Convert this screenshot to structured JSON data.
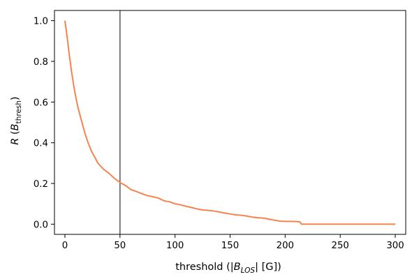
{
  "chart_data": {
    "type": "line",
    "title": "",
    "xlabel": {
      "prefix": "threshold (|",
      "var": "B",
      "sub": "LOS",
      "suffix": "| [G])"
    },
    "ylabel": {
      "var": "R",
      "open": " (",
      "var2": "B",
      "sub": "thresh",
      "close": ")"
    },
    "xlim": [
      -9.5,
      309.5
    ],
    "ylim": [
      -0.05,
      1.05
    ],
    "xticks": [
      0,
      50,
      100,
      150,
      200,
      250,
      300
    ],
    "xtick_labels": [
      "0",
      "50",
      "100",
      "150",
      "200",
      "250",
      "300"
    ],
    "yticks": [
      0.0,
      0.2,
      0.4,
      0.6,
      0.8,
      1.0
    ],
    "ytick_labels": [
      "0.0",
      "0.2",
      "0.4",
      "0.6",
      "0.8",
      "1.0"
    ],
    "grid": false,
    "vline": {
      "x": 50,
      "color": "#555555"
    },
    "series": [
      {
        "color": "#f4834f",
        "x": [
          0,
          2,
          4,
          6,
          8,
          10,
          12,
          15,
          18,
          21,
          24,
          27,
          30,
          35,
          40,
          45,
          50,
          55,
          60,
          65,
          70,
          75,
          80,
          85,
          90,
          95,
          100,
          105,
          110,
          115,
          120,
          125,
          130,
          135,
          140,
          145,
          150,
          155,
          160,
          165,
          170,
          175,
          180,
          185,
          190,
          195,
          200,
          205,
          210,
          213,
          215,
          220,
          230,
          240,
          250,
          260,
          270,
          280,
          290,
          300
        ],
        "y": [
          1.0,
          0.92,
          0.83,
          0.75,
          0.68,
          0.62,
          0.57,
          0.51,
          0.45,
          0.4,
          0.36,
          0.33,
          0.3,
          0.27,
          0.25,
          0.225,
          0.205,
          0.19,
          0.17,
          0.16,
          0.15,
          0.14,
          0.135,
          0.128,
          0.115,
          0.11,
          0.1,
          0.095,
          0.088,
          0.082,
          0.075,
          0.07,
          0.068,
          0.065,
          0.06,
          0.055,
          0.05,
          0.046,
          0.044,
          0.04,
          0.035,
          0.032,
          0.03,
          0.025,
          0.02,
          0.015,
          0.014,
          0.014,
          0.013,
          0.012,
          0.0,
          0.0,
          0.0,
          0.0,
          0.0,
          0.0,
          0.0,
          0.0,
          0.0,
          0.0
        ]
      }
    ]
  }
}
